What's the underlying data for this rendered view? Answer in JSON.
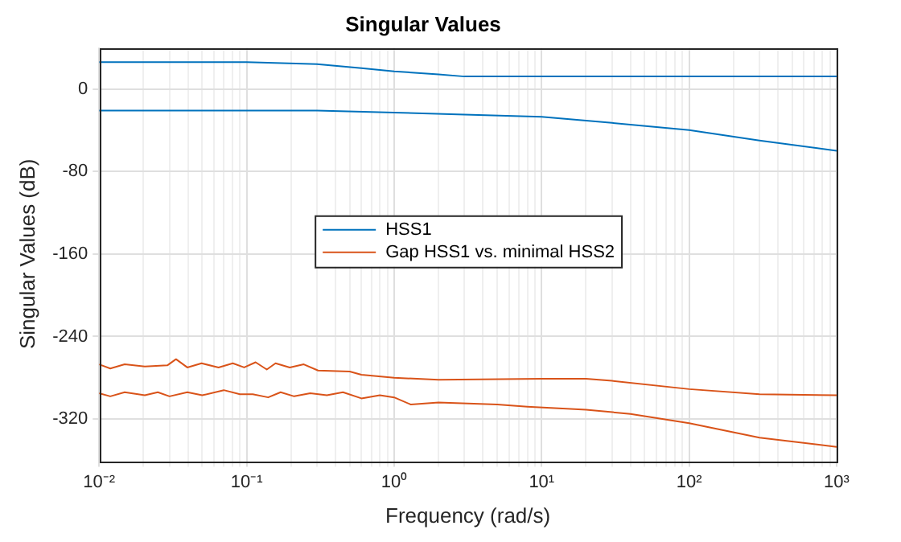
{
  "chart_data": {
    "type": "line",
    "title": "Singular Values",
    "xlabel": "Frequency (rad/s)",
    "ylabel": "Singular Values (dB)",
    "log": "x",
    "grid": true,
    "legend": "center",
    "line_style": "solid",
    "marker": "none",
    "xlim": [
      0.01,
      1000
    ],
    "xticks": [
      {
        "value": 0.01,
        "label": "10⁻²"
      },
      {
        "value": 0.1,
        "label": "10⁻¹"
      },
      {
        "value": 1,
        "label": "10⁰"
      },
      {
        "value": 10,
        "label": "10¹"
      },
      {
        "value": 100,
        "label": "10²"
      },
      {
        "value": 1000,
        "label": "10³"
      }
    ],
    "ylim": [
      -360,
      40
    ],
    "yticks": [
      -320,
      -240,
      -160,
      -80,
      0
    ],
    "series": [
      {
        "name": "HSS1",
        "color": "#0072bd",
        "x": [
          0.01,
          0.1,
          0.3,
          0.6,
          1,
          2,
          3,
          10,
          100,
          1000
        ],
        "values": [
          26,
          26,
          24,
          20,
          17,
          14,
          12,
          12,
          12,
          12
        ]
      },
      {
        "color": "#0072bd",
        "x": [
          0.01,
          0.1,
          0.3,
          1,
          3,
          10,
          30,
          100,
          300,
          1000
        ],
        "values": [
          -21,
          -21,
          -21,
          -23,
          -25,
          -27,
          -33,
          -40,
          -50,
          -60
        ]
      },
      {
        "name": "Gap HSS1 vs. minimal HSS2",
        "color": "#d95319",
        "x": [
          0.01,
          0.0119,
          0.0149,
          0.0204,
          0.029,
          0.0332,
          0.0396,
          0.0495,
          0.0645,
          0.0806,
          0.0962,
          0.115,
          0.137,
          0.157,
          0.196,
          0.244,
          0.305,
          0.5,
          0.6,
          1,
          2,
          10,
          20,
          30,
          100,
          300,
          1000
        ],
        "values": [
          -267,
          -271,
          -267,
          -269,
          -268,
          -262,
          -270,
          -266,
          -270,
          -266,
          -270,
          -265,
          -272,
          -266,
          -270,
          -267,
          -273,
          -274,
          -277,
          -280,
          -282,
          -281,
          -281,
          -283,
          -291,
          -296,
          -297
        ]
      },
      {
        "color": "#d95319",
        "x": [
          0.01,
          0.0119,
          0.0149,
          0.0204,
          0.025,
          0.03,
          0.0396,
          0.05,
          0.07,
          0.09,
          0.11,
          0.14,
          0.17,
          0.21,
          0.27,
          0.35,
          0.45,
          0.6,
          0.8,
          1,
          1.3,
          2,
          5,
          8,
          20,
          40,
          100,
          300,
          1000
        ],
        "values": [
          -295,
          -298,
          -294,
          -297,
          -294,
          -298,
          -294,
          -297,
          -292,
          -296,
          -296,
          -299,
          -294,
          -298,
          -295,
          -297,
          -294,
          -300,
          -297,
          -299,
          -306,
          -304,
          -306,
          -308,
          -311,
          -315,
          -324,
          -338,
          -347
        ]
      }
    ]
  }
}
